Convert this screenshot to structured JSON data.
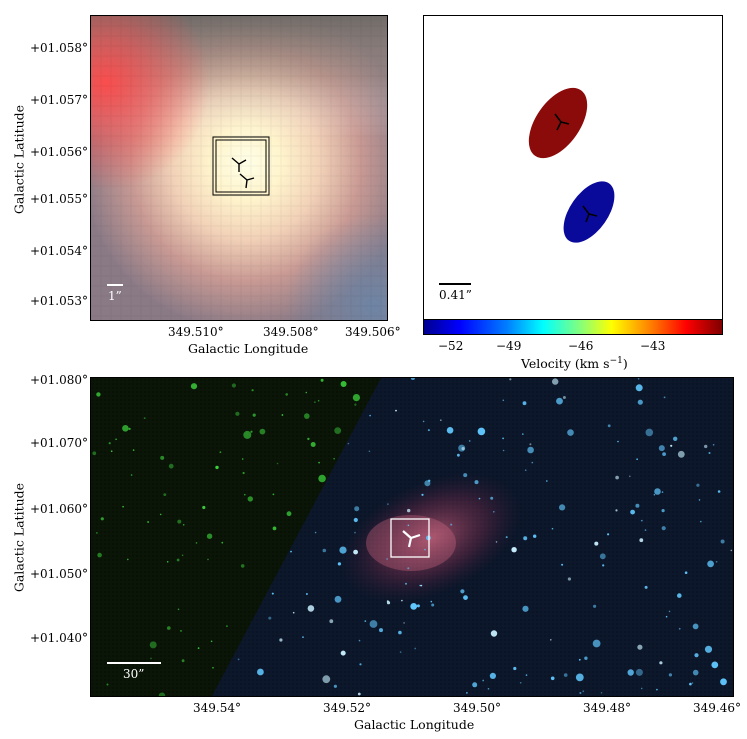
{
  "panel_a": {
    "ylabel": "Galactic Latitude",
    "xlabel": "Galactic Longitude",
    "y_ticks": [
      "+01.058°",
      "+01.057°",
      "+01.056°",
      "+01.055°",
      "+01.054°",
      "+01.053°"
    ],
    "x_ticks": [
      "349.510°",
      "349.508°",
      "349.506°"
    ],
    "scalebar": "1”"
  },
  "panel_b": {
    "scalebar": "0.41”",
    "colorbar_ticks": [
      "−52",
      "−49",
      "−46",
      "−43"
    ],
    "colorbar_label": "Velocity (km s",
    "colorbar_label_sup": "−1",
    "colorbar_label_end": ")",
    "ellipse_colors": [
      "#8b0a0a",
      "#0a0a9a"
    ]
  },
  "panel_c": {
    "ylabel": "Galactic Latitude",
    "xlabel": "Galactic Longitude",
    "y_ticks": [
      "+01.080°",
      "+01.070°",
      "+01.060°",
      "+01.050°",
      "+01.040°"
    ],
    "x_ticks": [
      "349.54°",
      "349.52°",
      "349.50°",
      "349.48°",
      "349.46°"
    ],
    "scalebar": "30”"
  }
}
